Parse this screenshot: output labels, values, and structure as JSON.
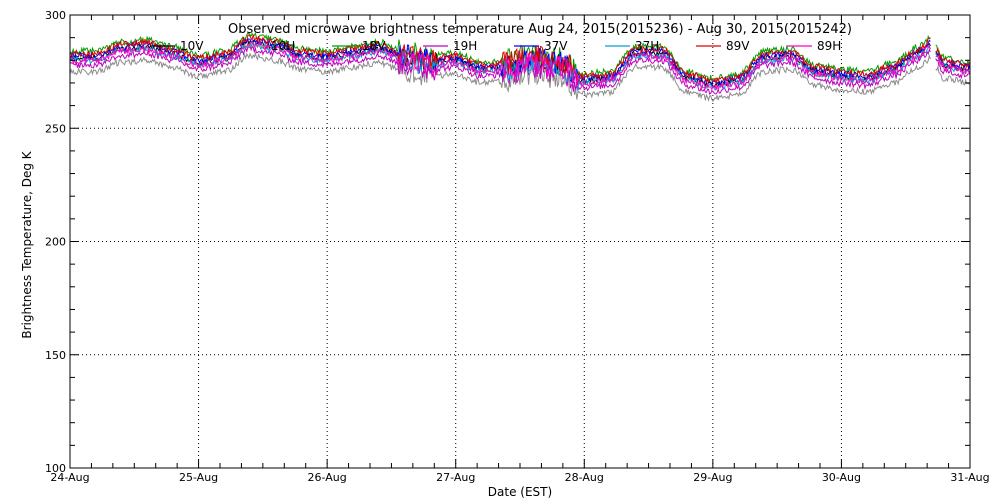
{
  "chart_data": {
    "type": "line",
    "title": "Observed microwave brightness temperature Aug 24, 2015(2015236) - Aug 30, 2015(2015242)",
    "xlabel": "Date (EST)",
    "ylabel": "Brightness Temperature, Deg K",
    "xlim": [
      "24-Aug",
      "31-Aug"
    ],
    "ylim": [
      100,
      300
    ],
    "x_ticks": [
      "24-Aug",
      "25-Aug",
      "26-Aug",
      "27-Aug",
      "28-Aug",
      "29-Aug",
      "30-Aug",
      "31-Aug"
    ],
    "y_ticks": [
      100,
      150,
      200,
      250,
      300
    ],
    "grid": true,
    "legend_position": "top",
    "gap": [
      6.7,
      6.73
    ],
    "base_curve": {
      "x": [
        0.0,
        0.2,
        0.4,
        0.6,
        0.8,
        1.0,
        1.2,
        1.4,
        1.6,
        1.8,
        2.0,
        2.2,
        2.4,
        2.6,
        2.8,
        3.0,
        3.2,
        3.4,
        3.6,
        3.8,
        4.0,
        4.2,
        4.4,
        4.6,
        4.8,
        5.0,
        5.2,
        5.4,
        5.6,
        5.8,
        6.0,
        6.2,
        6.4,
        6.6,
        6.7,
        6.73,
        6.8,
        7.0
      ],
      "y": [
        281,
        281,
        285,
        286,
        283,
        279,
        281,
        288,
        286,
        282,
        281,
        283,
        285,
        281,
        279,
        280,
        276,
        277,
        280,
        278,
        271,
        272,
        283,
        283,
        272,
        269,
        271,
        281,
        282,
        275,
        273,
        272,
        276,
        283,
        287,
        283,
        278,
        276
      ]
    },
    "series": [
      {
        "name": "10V",
        "color": "#000000",
        "offset": 0
      },
      {
        "name": "10H",
        "color": "#8c8c8c",
        "offset": -6
      },
      {
        "name": "18V",
        "color": "#00a000",
        "offset": 3
      },
      {
        "name": "19H",
        "color": "#c000c0",
        "offset": -3
      },
      {
        "name": "37V",
        "color": "#0000ff",
        "offset": 1
      },
      {
        "name": "37H",
        "color": "#00a0d0",
        "offset": -1
      },
      {
        "name": "89V",
        "color": "#e00000",
        "offset": 2
      },
      {
        "name": "89H",
        "color": "#ff00c0",
        "offset": -1
      }
    ]
  }
}
